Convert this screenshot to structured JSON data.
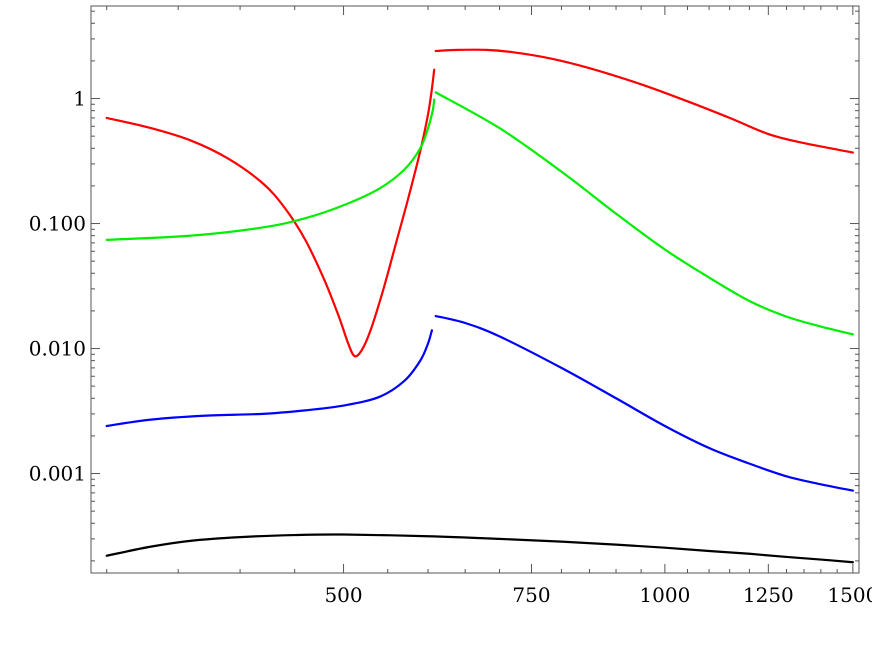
{
  "chart_data": {
    "type": "line",
    "title": "",
    "xlabel": "",
    "ylabel": "",
    "x_scale": "log",
    "y_scale": "log",
    "xlim": [
      290,
      1520
    ],
    "ylim": [
      0.00016,
      5.5
    ],
    "grid": false,
    "legend": "none",
    "x_ticks": [
      500,
      750,
      1000,
      1250,
      1500
    ],
    "x_tick_labels": [
      "500",
      "750",
      "1000",
      "1250",
      "1500"
    ],
    "y_ticks": [
      0.001,
      0.01,
      0.1,
      1
    ],
    "y_tick_labels": [
      "0.001",
      "0.010",
      "0.100",
      "1"
    ],
    "series": [
      {
        "color": "#ff0000",
        "segments": [
          [
            [
              300,
              0.7
            ],
            [
              330,
              0.58
            ],
            [
              360,
              0.46
            ],
            [
              390,
              0.33
            ],
            [
              420,
              0.21
            ],
            [
              440,
              0.135
            ],
            [
              460,
              0.075
            ],
            [
              480,
              0.035
            ],
            [
              495,
              0.018
            ],
            [
              505,
              0.011
            ],
            [
              512,
              0.0087
            ],
            [
              520,
              0.0097
            ],
            [
              530,
              0.014
            ],
            [
              545,
              0.03
            ],
            [
              560,
              0.07
            ],
            [
              575,
              0.16
            ],
            [
              590,
              0.38
            ],
            [
              600,
              0.75
            ],
            [
              605,
              1.2
            ],
            [
              608,
              1.7
            ]
          ],
          [
            [
              610,
              2.4
            ],
            [
              640,
              2.45
            ],
            [
              680,
              2.45
            ],
            [
              720,
              2.35
            ],
            [
              780,
              2.1
            ],
            [
              850,
              1.75
            ],
            [
              950,
              1.3
            ],
            [
              1050,
              0.95
            ],
            [
              1150,
              0.7
            ],
            [
              1250,
              0.52
            ],
            [
              1350,
              0.44
            ],
            [
              1500,
              0.37
            ]
          ]
        ]
      },
      {
        "color": "#00ee00",
        "segments": [
          [
            [
              300,
              0.074
            ],
            [
              360,
              0.08
            ],
            [
              420,
              0.093
            ],
            [
              460,
              0.11
            ],
            [
              500,
              0.14
            ],
            [
              540,
              0.19
            ],
            [
              570,
              0.27
            ],
            [
              590,
              0.4
            ],
            [
              600,
              0.58
            ],
            [
              606,
              0.8
            ],
            [
              608,
              0.98
            ]
          ],
          [
            [
              610,
              1.12
            ],
            [
              700,
              0.58
            ],
            [
              800,
              0.26
            ],
            [
              900,
              0.12
            ],
            [
              1000,
              0.062
            ],
            [
              1100,
              0.037
            ],
            [
              1200,
              0.024
            ],
            [
              1300,
              0.018
            ],
            [
              1400,
              0.015
            ],
            [
              1500,
              0.013
            ]
          ]
        ]
      },
      {
        "color": "#0000ff",
        "segments": [
          [
            [
              300,
              0.0024
            ],
            [
              330,
              0.0027
            ],
            [
              370,
              0.0029
            ],
            [
              420,
              0.003
            ],
            [
              460,
              0.0032
            ],
            [
              500,
              0.0035
            ],
            [
              540,
              0.0041
            ],
            [
              570,
              0.0055
            ],
            [
              590,
              0.008
            ],
            [
              600,
              0.011
            ],
            [
              605,
              0.014
            ]
          ],
          [
            [
              610,
              0.0182
            ],
            [
              650,
              0.016
            ],
            [
              700,
              0.0125
            ],
            [
              800,
              0.007
            ],
            [
              900,
              0.004
            ],
            [
              1000,
              0.0024
            ],
            [
              1100,
              0.0016
            ],
            [
              1200,
              0.0012
            ],
            [
              1300,
              0.00095
            ],
            [
              1400,
              0.00082
            ],
            [
              1500,
              0.00073
            ]
          ]
        ]
      },
      {
        "color": "#000000",
        "segments": [
          [
            [
              300,
              0.00022
            ],
            [
              330,
              0.00026
            ],
            [
              360,
              0.00029
            ],
            [
              400,
              0.00031
            ],
            [
              450,
              0.000322
            ],
            [
              500,
              0.000325
            ],
            [
              600,
              0.000315
            ],
            [
              700,
              0.0003
            ],
            [
              800,
              0.000285
            ],
            [
              900,
              0.00027
            ],
            [
              1000,
              0.000255
            ],
            [
              1100,
              0.00024
            ],
            [
              1200,
              0.000228
            ],
            [
              1300,
              0.000215
            ],
            [
              1400,
              0.000205
            ],
            [
              1500,
              0.000195
            ]
          ]
        ]
      }
    ]
  }
}
